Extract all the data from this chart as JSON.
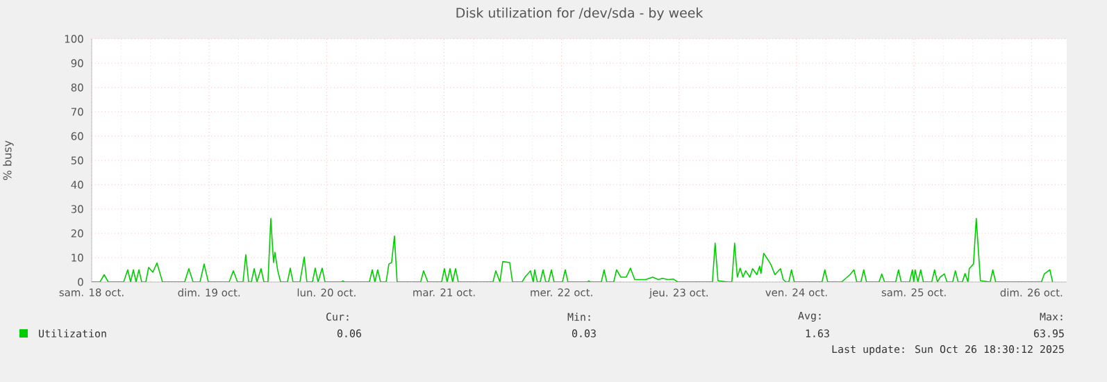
{
  "chart_data": {
    "type": "line",
    "title": "Disk utilization for /dev/sda - by week",
    "ylabel": "% busy",
    "xlim": [
      "2025-10-18T00:00",
      "2025-10-26T07:12"
    ],
    "ylim": [
      0,
      100
    ],
    "xticks": [
      {
        "value": "2025-10-18",
        "label": "sam. 18 oct."
      },
      {
        "value": "2025-10-19",
        "label": "dim. 19 oct."
      },
      {
        "value": "2025-10-20",
        "label": "lun. 20 oct."
      },
      {
        "value": "2025-10-21",
        "label": "mar. 21 oct."
      },
      {
        "value": "2025-10-22",
        "label": "mer. 22 oct."
      },
      {
        "value": "2025-10-23",
        "label": "jeu. 23 oct."
      },
      {
        "value": "2025-10-24",
        "label": "ven. 24 oct."
      },
      {
        "value": "2025-10-25",
        "label": "sam. 25 oct."
      },
      {
        "value": "2025-10-26",
        "label": "dim. 26 oct."
      }
    ],
    "yticks": [
      0,
      10,
      20,
      30,
      40,
      50,
      60,
      70,
      80,
      90,
      100
    ],
    "grid": true,
    "legend": "bottom",
    "marker": "none",
    "line_style": "solid",
    "annotations": [
      "Cur:",
      "0.06",
      "Min:",
      "0.03",
      "Avg:",
      "1.63",
      "Max:",
      "63.95",
      "Last update: Sun Oct 26 18:30:12 2025"
    ],
    "series": [
      {
        "name": "Utilization",
        "color": "#00cc00",
        "x": [
          "2025-10-18T00:00",
          "2025-10-18T01:42",
          "2025-10-18T02:33",
          "2025-10-18T03:24",
          "2025-10-18T06:32",
          "2025-10-18T07:22",
          "2025-10-18T07:57",
          "2025-10-18T08:31",
          "2025-10-18T09:04",
          "2025-10-18T09:39",
          "2025-10-18T10:13",
          "2025-10-18T11:04",
          "2025-10-18T11:38",
          "2025-10-18T12:29",
          "2025-10-18T13:21",
          "2025-10-18T14:28",
          "2025-10-18T19:00",
          "2025-10-18T19:51",
          "2025-10-18T20:43",
          "2025-10-18T22:08",
          "2025-10-18T22:58",
          "2025-10-18T23:50",
          "2025-10-19T04:05",
          "2025-10-19T04:57",
          "2025-10-19T05:47",
          "2025-10-19T06:55",
          "2025-10-19T07:29",
          "2025-10-19T08:04",
          "2025-10-19T08:37",
          "2025-10-19T09:12",
          "2025-10-19T09:46",
          "2025-10-19T10:36",
          "2025-10-19T11:11",
          "2025-10-19T12:01",
          "2025-10-19T12:36",
          "2025-10-19T13:09",
          "2025-10-19T13:26",
          "2025-10-19T14:01",
          "2025-10-19T14:36",
          "2025-10-19T16:00",
          "2025-10-19T16:34",
          "2025-10-19T17:08",
          "2025-10-19T18:33",
          "2025-10-19T19:25",
          "2025-10-19T19:58",
          "2025-10-19T21:06",
          "2025-10-19T21:40",
          "2025-10-19T22:15",
          "2025-10-19T23:05",
          "2025-10-19T23:40",
          "2025-10-20T03:04",
          "2025-10-20T03:20",
          "2025-10-20T03:37",
          "2025-10-20T08:44",
          "2025-10-20T09:19",
          "2025-10-20T09:52",
          "2025-10-20T10:26",
          "2025-10-20T11:01",
          "2025-10-20T12:09",
          "2025-10-20T12:43",
          "2025-10-20T13:16",
          "2025-10-20T13:51",
          "2025-10-20T14:24",
          "2025-10-20T19:13",
          "2025-10-20T19:48",
          "2025-10-20T20:40",
          "2025-10-20T23:30",
          "2025-10-21T00:03",
          "2025-10-21T00:37",
          "2025-10-21T01:12",
          "2025-10-21T01:45",
          "2025-10-21T02:20",
          "2025-10-21T02:54",
          "2025-10-21T09:59",
          "2025-10-21T10:34",
          "2025-10-21T11:24",
          "2025-10-21T11:59",
          "2025-10-21T13:24",
          "2025-10-21T13:58",
          "2025-10-21T15:56",
          "2025-10-21T16:31",
          "2025-10-21T17:38",
          "2025-10-21T18:13",
          "2025-10-21T18:30",
          "2025-10-21T19:03",
          "2025-10-21T19:38",
          "2025-10-21T20:12",
          "2025-10-21T20:46",
          "2025-10-21T21:20",
          "2025-10-21T21:55",
          "2025-10-21T22:28",
          "2025-10-22T00:10",
          "2025-10-22T00:45",
          "2025-10-22T01:18",
          "2025-10-22T05:17",
          "2025-10-22T05:34",
          "2025-10-22T05:50",
          "2025-10-22T08:07",
          "2025-10-22T08:41",
          "2025-10-22T09:14",
          "2025-10-22T10:39",
          "2025-10-22T11:14",
          "2025-10-22T12:06",
          "2025-10-22T13:13",
          "2025-10-22T14:04",
          "2025-10-22T14:56",
          "2025-10-22T17:11",
          "2025-10-22T18:36",
          "2025-10-22T19:45",
          "2025-10-22T20:36",
          "2025-10-22T21:43",
          "2025-10-22T22:52",
          "2025-10-22T23:43",
          "2025-10-23T06:49",
          "2025-10-23T07:22",
          "2025-10-23T07:57",
          "2025-10-23T09:56",
          "2025-10-23T10:47",
          "2025-10-23T11:21",
          "2025-10-23T11:54",
          "2025-10-23T12:29",
          "2025-10-23T13:03",
          "2025-10-23T13:36",
          "2025-10-23T14:28",
          "2025-10-23T15:01",
          "2025-10-23T15:53",
          "2025-10-23T16:28",
          "2025-10-23T16:44",
          "2025-10-23T17:18",
          "2025-10-23T17:53",
          "2025-10-23T18:43",
          "2025-10-23T19:35",
          "2025-10-23T20:43",
          "2025-10-23T21:17",
          "2025-10-23T21:50",
          "2025-10-23T22:25",
          "2025-10-23T22:58",
          "2025-10-23T23:33",
          "2025-10-24T05:12",
          "2025-10-24T05:47",
          "2025-10-24T06:22",
          "2025-10-24T09:12",
          "2025-10-24T09:46",
          "2025-10-24T10:54",
          "2025-10-24T11:44",
          "2025-10-24T12:19",
          "2025-10-24T13:09",
          "2025-10-24T13:44",
          "2025-10-24T14:18",
          "2025-10-24T16:51",
          "2025-10-24T17:25",
          "2025-10-24T17:59",
          "2025-10-24T20:15",
          "2025-10-24T20:50",
          "2025-10-24T21:23",
          "2025-10-24T23:05",
          "2025-10-24T23:40",
          "2025-10-24T23:57",
          "2025-10-25T00:13",
          "2025-10-25T00:48",
          "2025-10-25T01:22",
          "2025-10-25T01:55",
          "2025-10-25T03:37",
          "2025-10-25T04:12",
          "2025-10-25T04:47",
          "2025-10-25T05:20",
          "2025-10-25T06:12",
          "2025-10-25T06:45",
          "2025-10-25T07:54",
          "2025-10-25T08:27",
          "2025-10-25T09:01",
          "2025-10-25T09:52",
          "2025-10-25T10:26",
          "2025-10-25T11:01",
          "2025-10-25T11:17",
          "2025-10-25T12:09",
          "2025-10-25T12:43",
          "2025-10-25T13:34",
          "2025-10-25T15:33",
          "2025-10-25T16:06",
          "2025-10-25T16:41",
          "2025-10-26T02:02",
          "2025-10-26T02:37",
          "2025-10-26T03:45",
          "2025-10-26T04:19"
        ],
        "values": [
          0,
          0,
          3,
          0,
          0,
          5,
          0,
          5,
          0,
          5,
          0,
          0,
          6,
          4,
          7.8,
          0,
          0,
          5.5,
          0,
          0,
          7.4,
          0,
          0,
          4.6,
          0,
          0,
          11.2,
          0,
          0,
          5.5,
          0,
          5.5,
          0,
          0,
          26.1,
          8,
          12.2,
          4.6,
          0,
          0,
          5.7,
          0,
          0,
          10.3,
          0,
          0,
          5.7,
          0,
          5.7,
          0,
          0,
          0.5,
          0,
          0,
          5,
          0,
          5,
          0,
          0,
          7.4,
          8,
          18.9,
          0,
          0,
          4.6,
          0,
          0,
          5.5,
          0,
          5.5,
          0,
          5.5,
          0,
          0,
          4.6,
          0,
          8.4,
          8,
          0,
          0,
          2,
          4.6,
          0,
          5,
          0,
          0,
          5,
          0,
          0,
          5,
          0,
          0,
          5,
          0,
          0,
          0.5,
          0,
          0,
          5,
          0,
          0,
          5,
          2,
          2,
          5.7,
          1,
          1,
          2,
          1,
          1.5,
          1,
          1.2,
          0,
          0,
          16,
          0.5,
          0,
          0,
          16,
          2,
          5.7,
          2,
          4.6,
          2,
          5.5,
          3,
          6.5,
          3.5,
          11.8,
          10,
          7.4,
          3,
          5.5,
          1,
          0,
          0,
          5,
          0,
          0,
          5,
          0,
          0,
          1,
          3,
          5,
          0,
          0,
          5,
          0,
          0,
          3.3,
          0,
          0,
          5,
          0,
          0,
          5,
          0,
          5,
          0,
          5,
          0,
          0,
          5,
          0,
          2,
          3.3,
          0,
          0,
          4.6,
          0,
          0,
          3.5,
          0,
          5.5,
          7.4,
          26.1,
          0.5,
          0,
          5,
          0,
          0,
          3.3,
          5,
          0
        ]
      }
    ]
  }
}
